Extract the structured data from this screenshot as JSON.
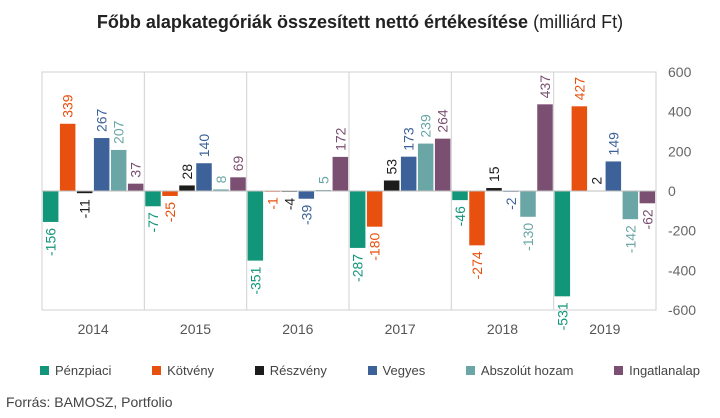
{
  "chart_data": {
    "type": "bar",
    "title": "Főbb alapkategóriák összesített nettó értékesítése",
    "title_suffix": "(milliárd Ft)",
    "categories": [
      "2014",
      "2015",
      "2016",
      "2017",
      "2018",
      "2019"
    ],
    "series": [
      {
        "name": "Pénzpiaci",
        "color": "#12967a",
        "values": [
          -156,
          -77,
          -351,
          -287,
          -46,
          -531
        ],
        "labels": [
          "-156",
          "-77",
          "-351",
          "-287",
          "-46",
          "-531"
        ]
      },
      {
        "name": "Kötvény",
        "color": "#e8500f",
        "values": [
          339,
          -25,
          -1,
          -180,
          -274,
          427
        ],
        "labels": [
          "339",
          "-25",
          "-1",
          "-180",
          "-274",
          "427"
        ]
      },
      {
        "name": "Részvény",
        "color": "#1c1c1c",
        "values": [
          -11,
          28,
          -4,
          53,
          15,
          2
        ],
        "labels": [
          "-11",
          "28",
          "-4",
          "53",
          "15",
          "2"
        ]
      },
      {
        "name": "Vegyes",
        "color": "#3d6299",
        "values": [
          267,
          140,
          -39,
          173,
          -2,
          149
        ],
        "labels": [
          "267",
          "140",
          "-39",
          "173",
          "-2",
          "149"
        ]
      },
      {
        "name": "Abszolút hozam",
        "color": "#6aa6a6",
        "values": [
          207,
          8,
          5,
          239,
          -130,
          -142
        ],
        "labels": [
          "207",
          "8",
          "5",
          "239",
          "-130",
          "-142"
        ]
      },
      {
        "name": "Ingatlanalap",
        "color": "#7a4f72",
        "values": [
          37,
          69,
          172,
          264,
          437,
          -62
        ],
        "labels": [
          "37",
          "69",
          "172",
          "264",
          "437",
          "-62"
        ]
      }
    ],
    "ylim": [
      -600,
      600
    ],
    "yticks": [
      "600",
      "400",
      "200",
      "0",
      "-200",
      "-400",
      "-600"
    ],
    "legend_position": "bottom",
    "grid": "vertical-separators"
  },
  "source": "Forrás: BAMOSZ, Portfolio"
}
